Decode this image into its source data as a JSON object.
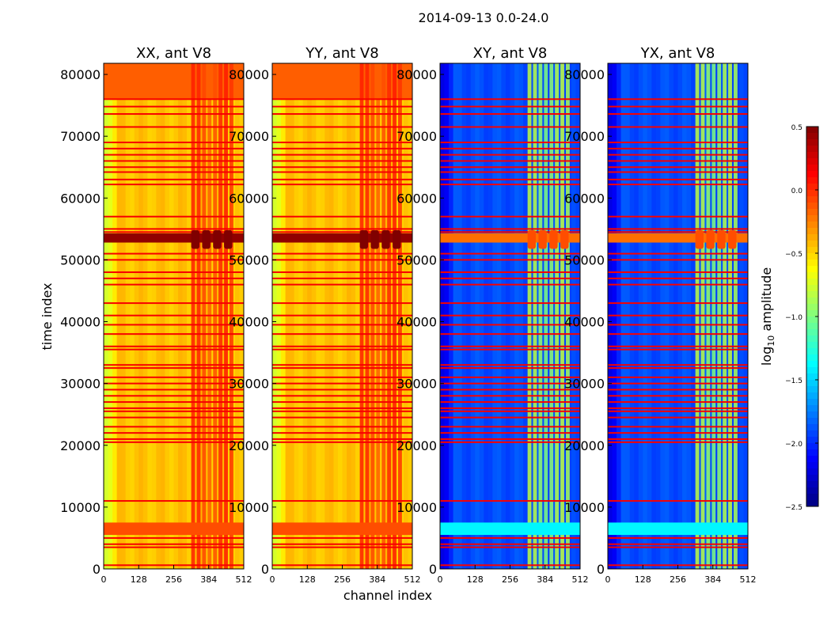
{
  "chart_data": {
    "type": "heatmap",
    "title": "2014-09-13 0.0-24.0",
    "xlabel": "channel index",
    "ylabel": "time index",
    "xlim": [
      0,
      512
    ],
    "ylim": [
      0,
      81800
    ],
    "xticks": [
      0,
      128,
      256,
      384,
      512
    ],
    "yticks": [
      0,
      10000,
      20000,
      30000,
      40000,
      50000,
      60000,
      70000,
      80000
    ],
    "colorbar": {
      "label": "log10 amplitude",
      "label_main": "log",
      "label_sub": "10",
      "label_tail": " amplitude",
      "range": [
        -2.5,
        0.5
      ],
      "ticks": [
        "0.5",
        "0.0",
        "−0.5",
        "−1.0",
        "−1.5",
        "−2.0",
        "−2.5"
      ],
      "tick_values": [
        0.5,
        0.0,
        -0.5,
        -1.0,
        -1.5,
        -2.0,
        -2.5
      ],
      "colormap": "jet"
    },
    "panels": [
      {
        "title": "XX, ant V8",
        "base": -0.45,
        "edge": -0.75,
        "top_region_start": 76000,
        "top_value": -0.15,
        "rfi_channels": [
          320,
          480
        ],
        "rfi_value": -0.05,
        "flag_value": 0.15,
        "strong_band": [
          52800,
          54300
        ],
        "strong_value": 0.45,
        "strong_band2": [
          5500,
          7500
        ],
        "strong2_value": -0.1
      },
      {
        "title": "YY, ant V8",
        "base": -0.45,
        "edge": -0.75,
        "top_region_start": 76000,
        "top_value": -0.15,
        "rfi_channels": [
          320,
          480
        ],
        "rfi_value": -0.05,
        "flag_value": 0.15,
        "strong_band": [
          52800,
          54300
        ],
        "strong_value": 0.45,
        "strong_band2": [
          5500,
          7500
        ],
        "strong2_value": -0.1
      },
      {
        "title": "XY, ant V8",
        "base": -1.9,
        "edge": -2.2,
        "top_region_start": 81800,
        "top_value": -1.9,
        "rfi_channels": [
          320,
          480
        ],
        "rfi_value": -0.9,
        "flag_value": 0.15,
        "strong_band": [
          52800,
          54300
        ],
        "strong_value": -0.2,
        "strong_band2": [
          5500,
          7500
        ],
        "strong2_value": -1.4
      },
      {
        "title": "YX, ant V8",
        "base": -1.9,
        "edge": -2.2,
        "top_region_start": 81800,
        "top_value": -1.9,
        "rfi_channels": [
          320,
          480
        ],
        "rfi_value": -0.9,
        "flag_value": 0.15,
        "strong_band": [
          52800,
          54300
        ],
        "strong_value": -0.2,
        "strong_band2": [
          5500,
          7500
        ],
        "strong2_value": -1.4
      }
    ],
    "flagged_time_rows": [
      600,
      3500,
      4000,
      5000,
      11000,
      20500,
      21000,
      22000,
      23000,
      24500,
      25500,
      26000,
      27000,
      28000,
      29000,
      30000,
      31000,
      32500,
      33000,
      35500,
      36000,
      38000,
      39500,
      41000,
      43000,
      46000,
      47000,
      48000,
      50000,
      51000,
      54500,
      55000,
      57000,
      62200,
      63000,
      64200,
      65000,
      66000,
      67000,
      68000,
      69000,
      71500,
      73600,
      74800,
      76000
    ],
    "tick_labels_y": [
      "0",
      "10000",
      "20000",
      "30000",
      "40000",
      "50000",
      "60000",
      "70000",
      "80000"
    ],
    "tick_labels_x": [
      "0",
      "128",
      "256",
      "384",
      "512"
    ]
  }
}
